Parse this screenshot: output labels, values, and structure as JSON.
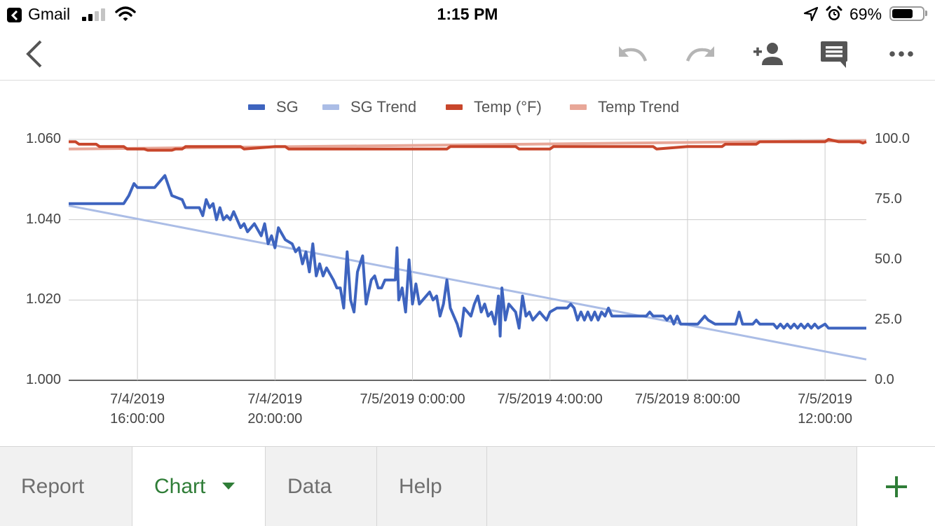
{
  "status_bar": {
    "back_app": "Gmail",
    "time": "1:15 PM",
    "battery": "69%",
    "battery_level": 0.69,
    "icons": [
      "back-to-app-icon",
      "cellular-signal-icon",
      "wifi-icon",
      "location-arrow-icon",
      "alarm-clock-icon",
      "battery-icon"
    ]
  },
  "toolbar": {
    "icons": [
      "back-arrow-icon",
      "undo-icon",
      "redo-icon",
      "add-person-icon",
      "comment-icon",
      "more-options-icon"
    ]
  },
  "chart_data": {
    "type": "line",
    "x_axis": {
      "ticks": [
        "7/4/2019\n16:00:00",
        "7/4/2019\n20:00:00",
        "7/5/2019 0:00:00",
        "7/5/2019 4:00:00",
        "7/5/2019 8:00:00",
        "7/5/2019\n12:00:00"
      ],
      "tick_hours": [
        16,
        20,
        24,
        28,
        32,
        36
      ],
      "range_hours": [
        14,
        37.2
      ]
    },
    "y_left": {
      "ticks": [
        "1.060",
        "1.040",
        "1.020",
        "1.000"
      ],
      "range": [
        1.0,
        1.06
      ]
    },
    "y_right": {
      "ticks": [
        "100.0",
        "75.0",
        "50.0",
        "25.0",
        "0.0"
      ],
      "range": [
        0,
        100
      ]
    },
    "grid": true,
    "legend_position": "top",
    "series": [
      {
        "name": "SG",
        "axis": "left",
        "color": "#3e64bf",
        "points": [
          [
            14.0,
            1.044
          ],
          [
            15.6,
            1.044
          ],
          [
            15.75,
            1.046
          ],
          [
            15.9,
            1.049
          ],
          [
            16.0,
            1.048
          ],
          [
            16.5,
            1.048
          ],
          [
            16.6,
            1.049
          ],
          [
            16.8,
            1.051
          ],
          [
            17.0,
            1.046
          ],
          [
            17.3,
            1.045
          ],
          [
            17.4,
            1.043
          ],
          [
            17.8,
            1.043
          ],
          [
            17.9,
            1.041
          ],
          [
            18.0,
            1.045
          ],
          [
            18.1,
            1.043
          ],
          [
            18.2,
            1.044
          ],
          [
            18.3,
            1.04
          ],
          [
            18.4,
            1.043
          ],
          [
            18.5,
            1.04
          ],
          [
            18.6,
            1.041
          ],
          [
            18.7,
            1.04
          ],
          [
            18.8,
            1.042
          ],
          [
            19.0,
            1.038
          ],
          [
            19.1,
            1.039
          ],
          [
            19.2,
            1.037
          ],
          [
            19.4,
            1.039
          ],
          [
            19.6,
            1.036
          ],
          [
            19.7,
            1.039
          ],
          [
            19.8,
            1.034
          ],
          [
            19.9,
            1.036
          ],
          [
            20.0,
            1.033
          ],
          [
            20.1,
            1.038
          ],
          [
            20.3,
            1.035
          ],
          [
            20.5,
            1.034
          ],
          [
            20.6,
            1.032
          ],
          [
            20.7,
            1.033
          ],
          [
            20.8,
            1.029
          ],
          [
            20.9,
            1.032
          ],
          [
            21.0,
            1.027
          ],
          [
            21.1,
            1.034
          ],
          [
            21.2,
            1.026
          ],
          [
            21.3,
            1.029
          ],
          [
            21.4,
            1.026
          ],
          [
            21.5,
            1.028
          ],
          [
            21.7,
            1.025
          ],
          [
            21.8,
            1.023
          ],
          [
            21.9,
            1.023
          ],
          [
            22.0,
            1.018
          ],
          [
            22.1,
            1.032
          ],
          [
            22.2,
            1.02
          ],
          [
            22.3,
            1.017
          ],
          [
            22.4,
            1.027
          ],
          [
            22.55,
            1.031
          ],
          [
            22.65,
            1.019
          ],
          [
            22.8,
            1.025
          ],
          [
            22.9,
            1.026
          ],
          [
            23.0,
            1.023
          ],
          [
            23.1,
            1.023
          ],
          [
            23.2,
            1.025
          ],
          [
            23.5,
            1.025
          ],
          [
            23.55,
            1.033
          ],
          [
            23.6,
            1.02
          ],
          [
            23.7,
            1.023
          ],
          [
            23.8,
            1.017
          ],
          [
            23.9,
            1.03
          ],
          [
            24.0,
            1.019
          ],
          [
            24.1,
            1.024
          ],
          [
            24.2,
            1.019
          ],
          [
            24.3,
            1.02
          ],
          [
            24.5,
            1.022
          ],
          [
            24.6,
            1.02
          ],
          [
            24.7,
            1.021
          ],
          [
            24.8,
            1.016
          ],
          [
            24.9,
            1.019
          ],
          [
            25.0,
            1.025
          ],
          [
            25.1,
            1.018
          ],
          [
            25.2,
            1.016
          ],
          [
            25.3,
            1.014
          ],
          [
            25.4,
            1.011
          ],
          [
            25.5,
            1.018
          ],
          [
            25.6,
            1.017
          ],
          [
            25.7,
            1.016
          ],
          [
            25.8,
            1.019
          ],
          [
            25.9,
            1.021
          ],
          [
            26.0,
            1.017
          ],
          [
            26.1,
            1.019
          ],
          [
            26.2,
            1.016
          ],
          [
            26.3,
            1.017
          ],
          [
            26.4,
            1.014
          ],
          [
            26.5,
            1.021
          ],
          [
            26.55,
            1.011
          ],
          [
            26.6,
            1.023
          ],
          [
            26.7,
            1.015
          ],
          [
            26.8,
            1.019
          ],
          [
            27.0,
            1.017
          ],
          [
            27.1,
            1.013
          ],
          [
            27.2,
            1.021
          ],
          [
            27.3,
            1.016
          ],
          [
            27.4,
            1.017
          ],
          [
            27.5,
            1.015
          ],
          [
            27.7,
            1.017
          ],
          [
            27.8,
            1.016
          ],
          [
            27.9,
            1.015
          ],
          [
            28.0,
            1.017
          ],
          [
            28.2,
            1.018
          ],
          [
            28.5,
            1.018
          ],
          [
            28.6,
            1.019
          ],
          [
            28.7,
            1.018
          ],
          [
            28.8,
            1.015
          ],
          [
            28.9,
            1.017
          ],
          [
            29.0,
            1.015
          ],
          [
            29.1,
            1.017
          ],
          [
            29.2,
            1.015
          ],
          [
            29.3,
            1.017
          ],
          [
            29.4,
            1.015
          ],
          [
            29.5,
            1.017
          ],
          [
            29.6,
            1.016
          ],
          [
            29.7,
            1.018
          ],
          [
            29.8,
            1.016
          ],
          [
            30.0,
            1.016
          ],
          [
            30.8,
            1.016
          ],
          [
            30.9,
            1.017
          ],
          [
            31.0,
            1.016
          ],
          [
            31.3,
            1.016
          ],
          [
            31.4,
            1.015
          ],
          [
            31.5,
            1.016
          ],
          [
            31.6,
            1.014
          ],
          [
            31.7,
            1.016
          ],
          [
            31.8,
            1.014
          ],
          [
            32.0,
            1.014
          ],
          [
            32.3,
            1.014
          ],
          [
            32.4,
            1.015
          ],
          [
            32.5,
            1.016
          ],
          [
            32.6,
            1.015
          ],
          [
            32.8,
            1.014
          ],
          [
            33.4,
            1.014
          ],
          [
            33.5,
            1.017
          ],
          [
            33.6,
            1.014
          ],
          [
            33.9,
            1.014
          ],
          [
            34.0,
            1.015
          ],
          [
            34.1,
            1.014
          ],
          [
            34.5,
            1.014
          ],
          [
            34.6,
            1.013
          ],
          [
            34.7,
            1.014
          ],
          [
            34.8,
            1.013
          ],
          [
            34.9,
            1.014
          ],
          [
            35.0,
            1.013
          ],
          [
            35.1,
            1.014
          ],
          [
            35.2,
            1.013
          ],
          [
            35.3,
            1.014
          ],
          [
            35.4,
            1.013
          ],
          [
            35.5,
            1.014
          ],
          [
            35.6,
            1.013
          ],
          [
            35.7,
            1.014
          ],
          [
            35.8,
            1.013
          ],
          [
            36.0,
            1.014
          ],
          [
            36.1,
            1.013
          ],
          [
            36.2,
            1.013
          ],
          [
            37.2,
            1.013
          ]
        ]
      },
      {
        "name": "SG Trend",
        "axis": "left",
        "color": "#abbde6",
        "points": [
          [
            14.0,
            1.0435
          ],
          [
            37.2,
            1.0052
          ]
        ]
      },
      {
        "name": "Temp (°F)",
        "axis": "right",
        "color": "#c8462b",
        "points": [
          [
            14.0,
            99.0
          ],
          [
            14.2,
            99.0
          ],
          [
            14.3,
            98.0
          ],
          [
            14.8,
            98.0
          ],
          [
            14.9,
            97.0
          ],
          [
            15.6,
            97.0
          ],
          [
            15.7,
            96.0
          ],
          [
            16.2,
            96.0
          ],
          [
            16.3,
            95.5
          ],
          [
            17.0,
            95.5
          ],
          [
            17.1,
            96.0
          ],
          [
            17.3,
            96.0
          ],
          [
            17.4,
            97.0
          ],
          [
            19.0,
            97.0
          ],
          [
            19.1,
            96.0
          ],
          [
            20.0,
            97.0
          ],
          [
            20.3,
            97.0
          ],
          [
            20.4,
            96.0
          ],
          [
            25.0,
            96.0
          ],
          [
            25.1,
            97.0
          ],
          [
            27.0,
            97.0
          ],
          [
            27.1,
            96.0
          ],
          [
            28.0,
            96.0
          ],
          [
            28.1,
            97.0
          ],
          [
            31.0,
            97.0
          ],
          [
            31.1,
            96.0
          ],
          [
            32.0,
            97.0
          ],
          [
            33.0,
            97.0
          ],
          [
            33.1,
            98.0
          ],
          [
            34.0,
            98.0
          ],
          [
            34.1,
            99.0
          ],
          [
            36.0,
            99.0
          ],
          [
            36.1,
            100.0
          ],
          [
            36.4,
            99.0
          ],
          [
            37.0,
            99.0
          ],
          [
            37.1,
            98.5
          ],
          [
            37.2,
            99.0
          ]
        ]
      },
      {
        "name": "Temp Trend",
        "axis": "right",
        "color": "#e8a798",
        "points": [
          [
            14.0,
            96.0
          ],
          [
            37.2,
            99.5
          ]
        ]
      }
    ]
  },
  "tabs": {
    "report": "Report",
    "chart": "Chart",
    "data": "Data",
    "help": "Help",
    "active": "chart"
  }
}
